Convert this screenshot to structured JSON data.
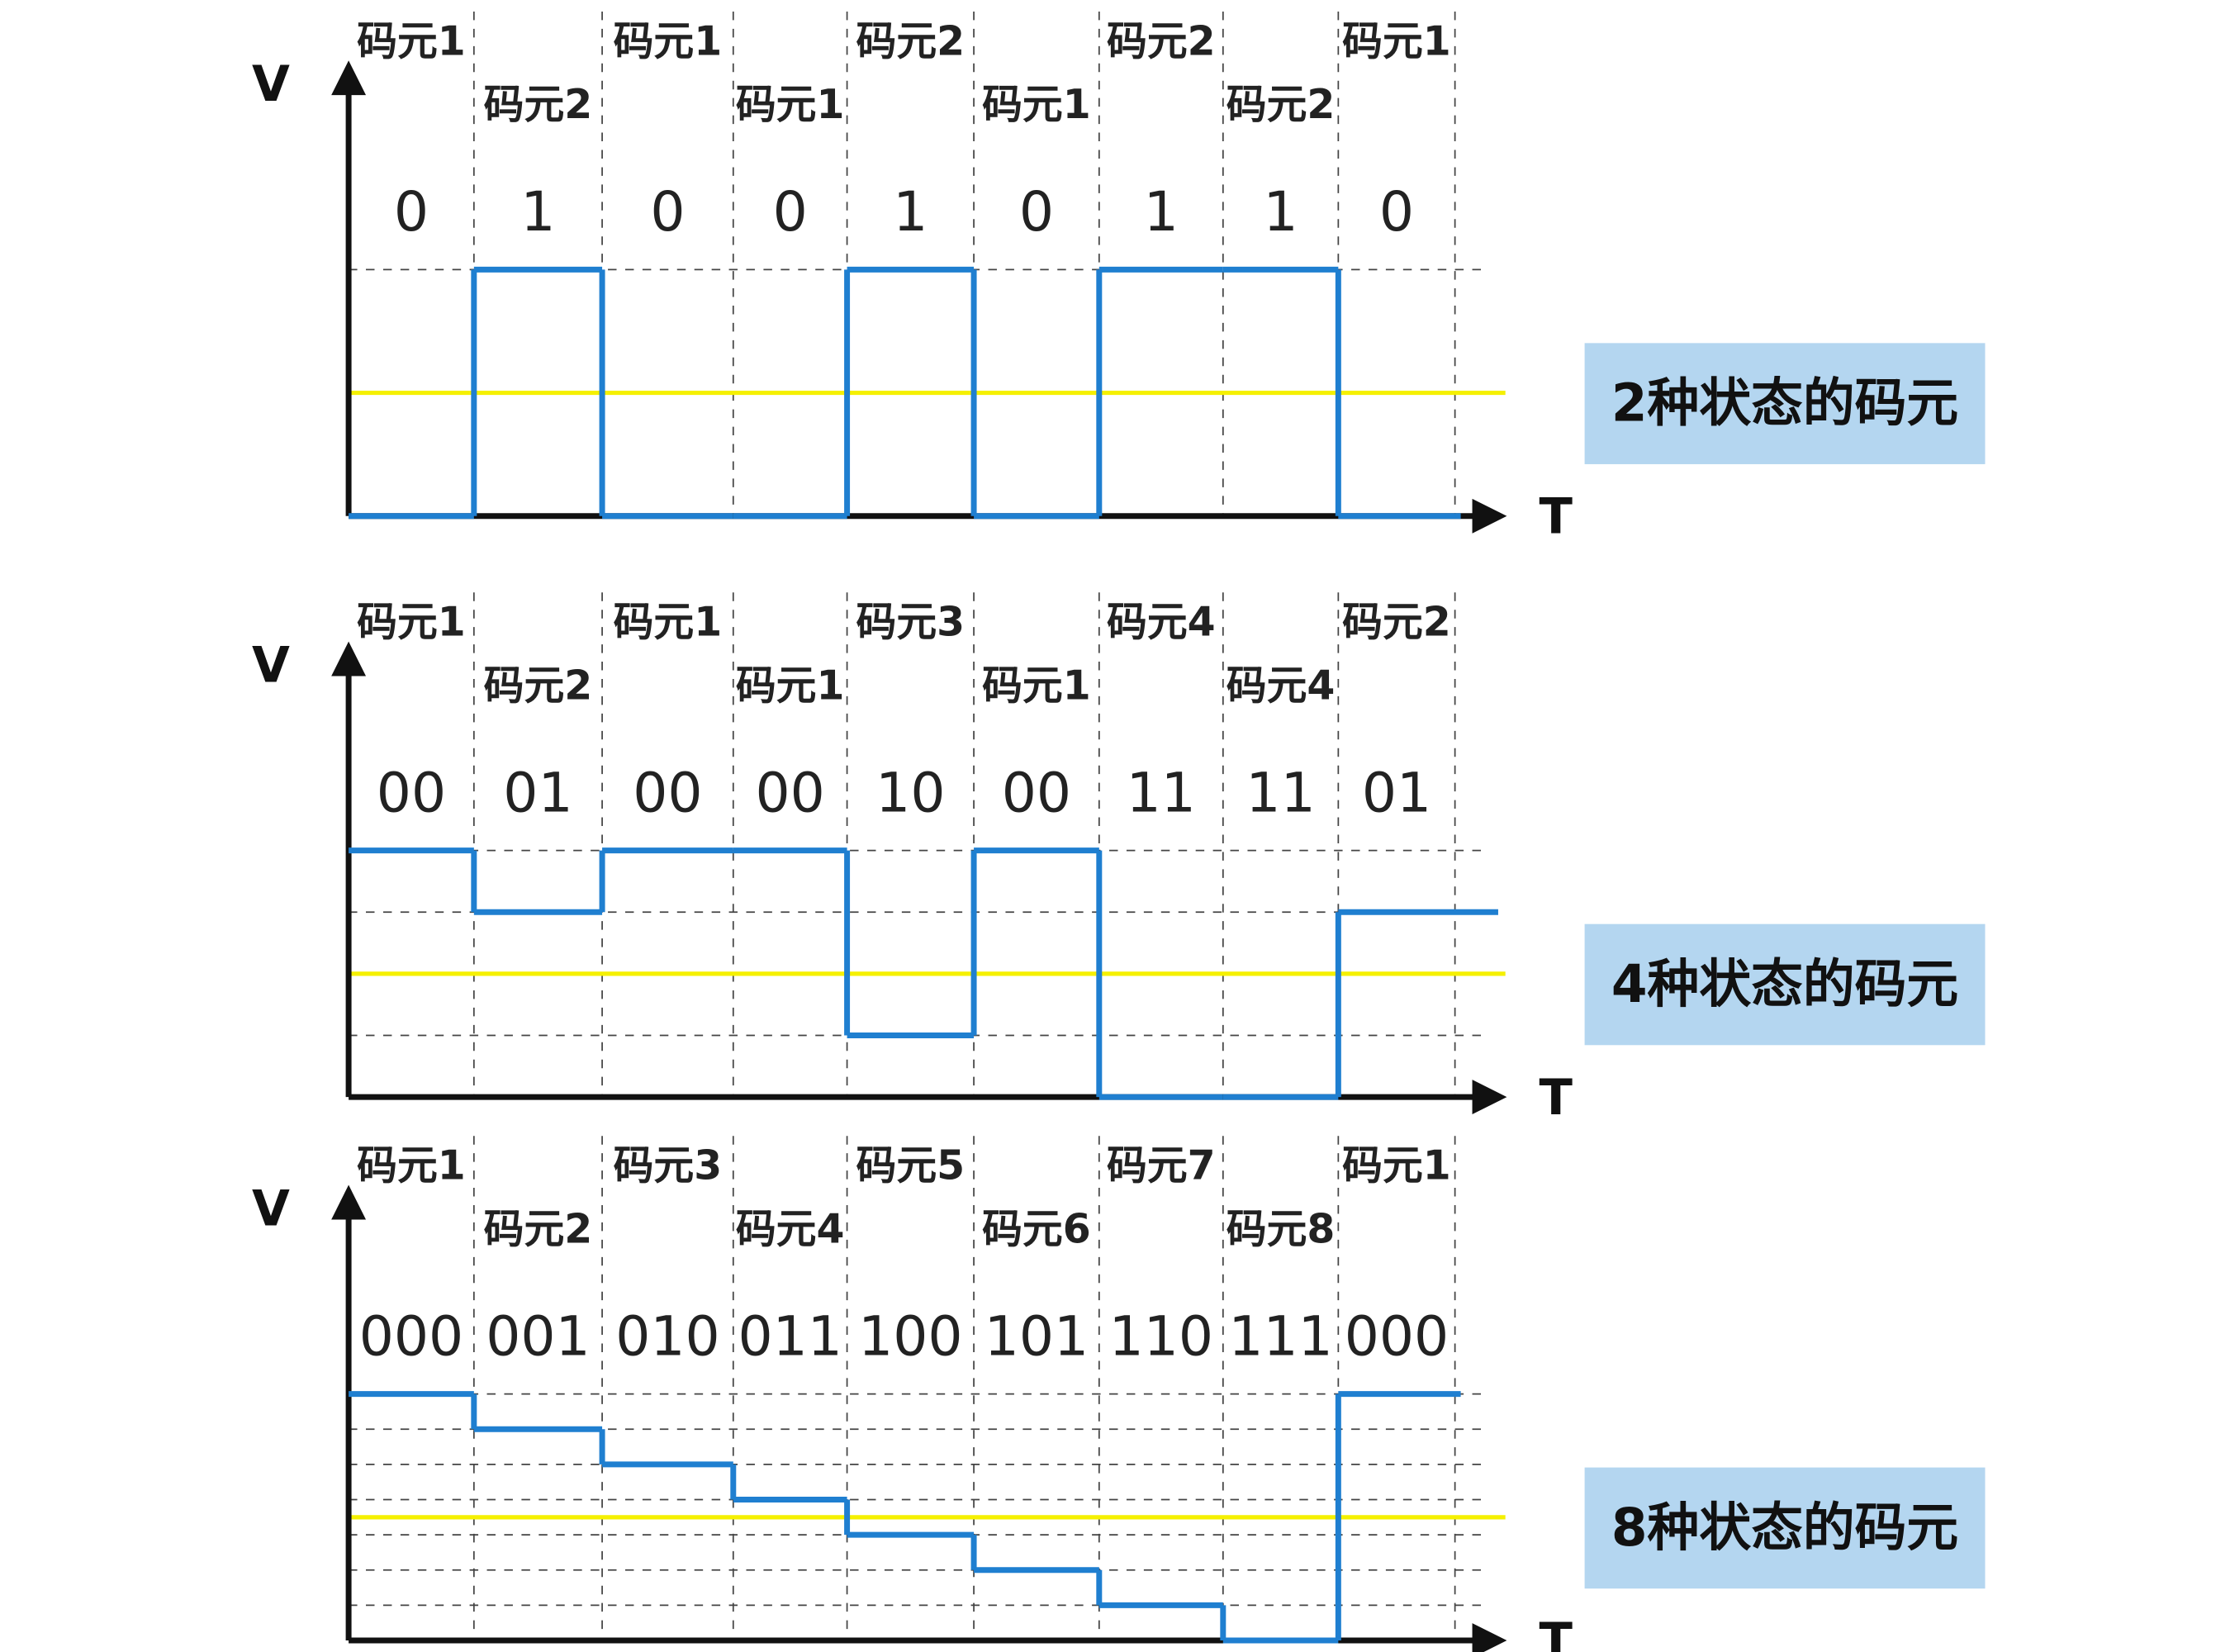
{
  "panels": [
    {
      "axis_y": "V",
      "axis_x": "T",
      "caption": "2种状态的码元",
      "symbols": [
        "码元1",
        "码元2",
        "码元1",
        "码元1",
        "码元2",
        "码元1",
        "码元2",
        "码元2",
        "码元1"
      ],
      "bits": [
        "0",
        "1",
        "0",
        "0",
        "1",
        "0",
        "1",
        "1",
        "0"
      ],
      "levels": [
        0,
        1,
        0,
        0,
        1,
        0,
        1,
        1,
        0
      ]
    },
    {
      "axis_y": "V",
      "axis_x": "T",
      "caption": "4种状态的码元",
      "symbols": [
        "码元1",
        "码元2",
        "码元1",
        "码元1",
        "码元3",
        "码元1",
        "码元4",
        "码元4",
        "码元2"
      ],
      "bits": [
        "00",
        "01",
        "00",
        "00",
        "10",
        "00",
        "11",
        "11",
        "01"
      ],
      "levels": [
        4,
        3,
        4,
        4,
        1,
        4,
        0,
        0,
        3
      ]
    },
    {
      "axis_y": "V",
      "axis_x": "T",
      "caption": "8种状态的码元",
      "symbols": [
        "码元1",
        "码元2",
        "码元3",
        "码元4",
        "码元5",
        "码元6",
        "码元7",
        "码元8",
        "码元1"
      ],
      "bits": [
        "000",
        "001",
        "010",
        "011",
        "100",
        "101",
        "110",
        "111",
        "000"
      ],
      "levels": [
        7,
        6,
        5,
        4,
        3,
        2,
        1,
        0,
        7
      ]
    }
  ]
}
